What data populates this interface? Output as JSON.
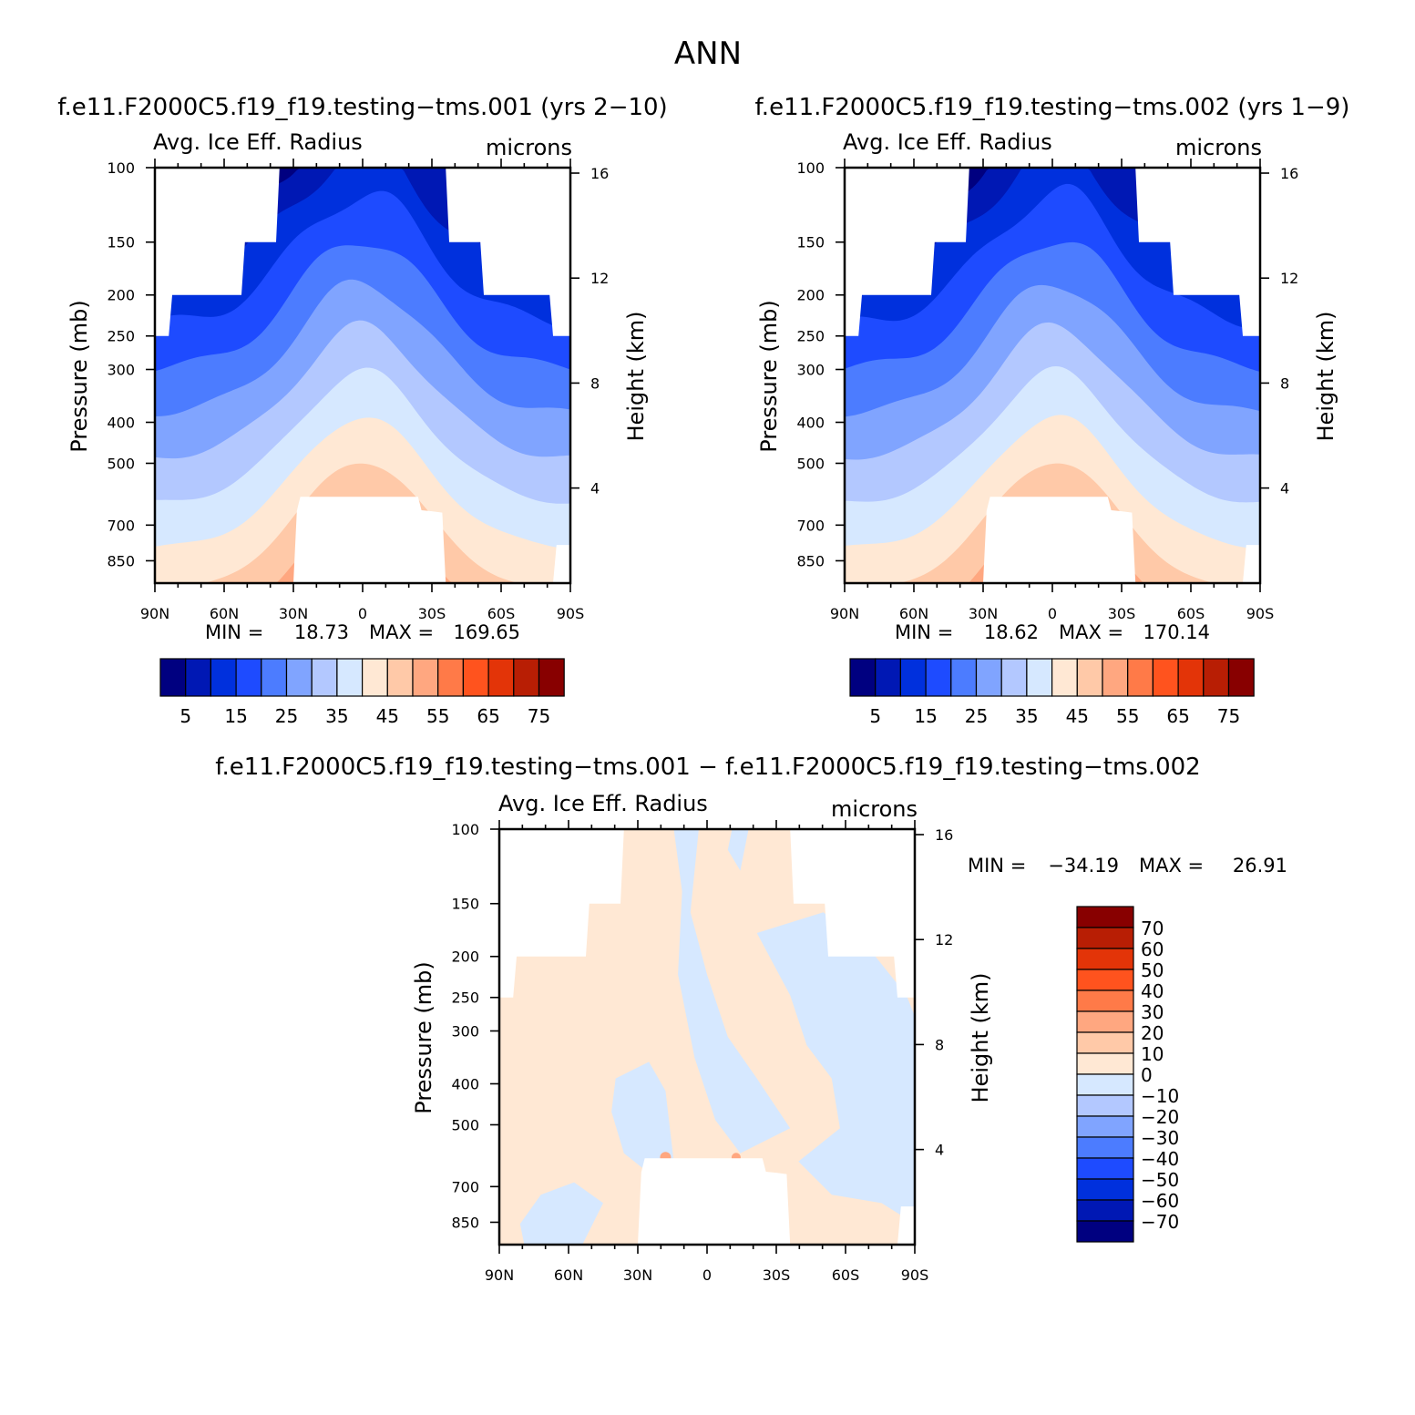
{
  "page": {
    "title": "ANN",
    "colors": {
      "seq": [
        "#000080",
        "#0018b4",
        "#0030dd",
        "#1e4bff",
        "#4c7cff",
        "#80a4ff",
        "#b3c8ff",
        "#d6e8ff",
        "#ffe8d4",
        "#ffc9a8",
        "#ffa780",
        "#ff7a48",
        "#ff531e",
        "#e33408",
        "#b81e04",
        "#880000"
      ],
      "diff": [
        "#000080",
        "#0018b4",
        "#0030dd",
        "#1e4bff",
        "#4c7cff",
        "#80a4ff",
        "#b3c8ff",
        "#d6e8ff",
        "#ffe8d4",
        "#ffc9a8",
        "#ffa780",
        "#ff7a48",
        "#ff531e",
        "#e33408",
        "#b81e04",
        "#880000"
      ]
    }
  },
  "chart_data": [
    {
      "type": "heatmap",
      "case_title": "f.e11.F2000C5.f19_f19.testing−tms.001 (yrs 2−10)",
      "variable": "Avg. Ice Eff. Radius",
      "units": "microns",
      "ylabel": "Pressure (mb)",
      "ylabel_right": "Height (km)",
      "x_ticks": [
        "90N",
        "60N",
        "30N",
        "0",
        "30S",
        "60S",
        "90S"
      ],
      "y_ticks": [
        "100",
        "150",
        "200",
        "250",
        "300",
        "400",
        "500",
        "700",
        "850"
      ],
      "y_right_ticks": [
        "16",
        "12",
        "8",
        "4"
      ],
      "min_label": "MIN =",
      "min_value": "18.73",
      "max_label": "MAX =",
      "max_value": "169.65",
      "colorbar_labels": [
        "5",
        "15",
        "25",
        "35",
        "45",
        "55",
        "65",
        "75"
      ],
      "core_threshold": 75,
      "core_max": 169.65
    },
    {
      "type": "heatmap",
      "case_title": "f.e11.F2000C5.f19_f19.testing−tms.002 (yrs 1−9)",
      "variable": "Avg. Ice Eff. Radius",
      "units": "microns",
      "ylabel": "Pressure (mb)",
      "ylabel_right": "Height (km)",
      "x_ticks": [
        "90N",
        "60N",
        "30N",
        "0",
        "30S",
        "60S",
        "90S"
      ],
      "y_ticks": [
        "100",
        "150",
        "200",
        "250",
        "300",
        "400",
        "500",
        "700",
        "850"
      ],
      "y_right_ticks": [
        "16",
        "12",
        "8",
        "4"
      ],
      "min_label": "MIN =",
      "min_value": "18.62",
      "max_label": "MAX =",
      "max_value": "170.14",
      "colorbar_labels": [
        "5",
        "15",
        "25",
        "35",
        "45",
        "55",
        "65",
        "75"
      ],
      "core_threshold": 75,
      "core_max": 170.14
    },
    {
      "type": "heatmap",
      "case_title": "f.e11.F2000C5.f19_f19.testing−tms.001 − f.e11.F2000C5.f19_f19.testing−tms.002",
      "variable": "Avg. Ice Eff. Radius",
      "units": "microns",
      "ylabel": "Pressure (mb)",
      "ylabel_right": "Height (km)",
      "x_ticks": [
        "90N",
        "60N",
        "30N",
        "0",
        "30S",
        "60S",
        "90S"
      ],
      "y_ticks": [
        "100",
        "150",
        "200",
        "250",
        "300",
        "400",
        "500",
        "700",
        "850"
      ],
      "y_right_ticks": [
        "16",
        "12",
        "8",
        "4"
      ],
      "min_label": "MIN =",
      "min_value": "−34.19",
      "max_label": "MAX =",
      "max_value": "26.91",
      "colorbar_labels": [
        "70",
        "60",
        "50",
        "40",
        "30",
        "20",
        "10",
        "0",
        "−10",
        "−20",
        "−30",
        "−40",
        "−50",
        "−60",
        "−70"
      ]
    }
  ]
}
